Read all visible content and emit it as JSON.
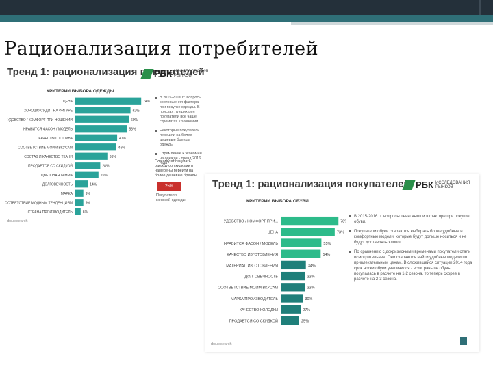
{
  "slide": {
    "title": "Рационализация потребителей"
  },
  "card1": {
    "title": "Тренд 1: рационализация покупателей",
    "brand": "РБК",
    "brand_sub": "ИССЛЕДОВАНИЯ РЫНКОВ",
    "chart_head": "КРИТЕРИИ ВЫБОРА ОДЕЖДЫ",
    "bullets": [
      "В 2015-2016 гг. вопросы соотношения фактора при покупке одежды. В поисках лучших цен покупатели все чаще стремятся к экономии",
      "Некоторые покупатели перешли на более дешевые бренды одежды",
      "Стремление к экономии на одежде - тренд 2016 года"
    ],
    "note": "Планируют покупать одежду со скидками в намерены перейти на более дешевые бренды",
    "badge": "25%",
    "badge_caption": "Покупатели женской одежды",
    "source": "rbc.research"
  },
  "card2": {
    "title": "Тренд 1: рационализация покупателей",
    "brand": "РБК",
    "brand_sub": "ИССЛЕДОВАНИЯ РЫНКОВ",
    "chart_head": "КРИТЕРИИ ВЫБОРА ОБУВИ",
    "bullets": [
      "В 2015-2016 гг. вопросы цены вышли в факторе при покупке обуви.",
      "Покупатели обуви стараются выбирать более удобные и комфортные модели, которые будут дольше носиться и не будут доставлять хлопот",
      "По сравнению с докризисными временами покупатели стали осмотрительнее. Они стараются найти удобные модели по привлекательным ценам. В сложившейся ситуации 2014 года срок носки обуви увеличился - если раньше обувь покупалась в расчете на 1-2 сезона, то теперь скорее в расчете на 2-3 сезона."
    ],
    "source": "rbc.research"
  },
  "chart_data": [
    {
      "type": "bar",
      "title": "КРИТЕРИИ ВЫБОРА ОДЕЖДЫ",
      "categories": [
        "ЦЕНА",
        "ХОРОШО СИДИТ НА ФИГУРЕ",
        "УДОБСТВО / КОМФОРТ ПРИ НОШЕНИИ",
        "НРАВИТСЯ ФАСОН / МОДЕЛЬ",
        "КАЧЕСТВО ПОШИВА",
        "СООТВЕТСТВИЕ МОИМ ВКУСАМ",
        "СОСТАВ И КАЧЕСТВО ТКАНИ",
        "ПРОДАЕТСЯ СО СКИДКОЙ",
        "ЦВЕТОВАЯ ГАММА",
        "ДОЛГОВЕЧНОСТЬ",
        "МАРКА",
        "СООТВЕТСТВИЕ МОДНЫМ ТЕНДЕНЦИЯМ",
        "СТРАНА ПРОИЗВОДИТЕЛЬ"
      ],
      "values": [
        74,
        62,
        60,
        58,
        47,
        46,
        36,
        28,
        26,
        14,
        9,
        9,
        6
      ],
      "labels": [
        "74%",
        "62%",
        "60%",
        "58%",
        "47%",
        "46%",
        "36%",
        "28%",
        "26%",
        "14%",
        "9%",
        "9%",
        "6%"
      ],
      "colors": [
        "#2aa39a",
        "#2aa39a",
        "#2aa39a",
        "#2aa39a",
        "#2aa39a",
        "#2aa39a",
        "#2aa39a",
        "#2aa39a",
        "#2aa39a",
        "#2aa39a",
        "#2aa39a",
        "#2aa39a",
        "#2aa39a"
      ],
      "xlim": [
        0,
        100
      ]
    },
    {
      "type": "bar",
      "title": "КРИТЕРИИ ВЫБОРА ОБУВИ",
      "categories": [
        "УДОБСТВО / КОМФОРТ ПРИ...",
        "ЦЕНА",
        "НРАВИТСЯ ФАСОН / МОДЕЛЬ",
        "КАЧЕСТВО ИЗГОТОВЛЕНИЯ",
        "МАТЕРИАЛ ИЗГОТОВЛЕНИЯ",
        "ДОЛГОВЕЧНОСТЬ",
        "СООТВЕТСТВИЕ МОИМ ВКУСАМ",
        "МАРКА/ПРОИЗВОДИТЕЛЬ",
        "КАЧЕСТВО КОЛОДКИ",
        "ПРОДАЕТСЯ СО СКИДКОЙ"
      ],
      "values": [
        78,
        73,
        55,
        54,
        34,
        33,
        33,
        30,
        27,
        25
      ],
      "labels": [
        "78%",
        "73%",
        "55%",
        "54%",
        "34%",
        "33%",
        "33%",
        "30%",
        "27%",
        "25%"
      ],
      "colors": [
        "#2dbb8a",
        "#2dbb8a",
        "#2dbb8a",
        "#2dbb8a",
        "#1f7f7a",
        "#1f7f7a",
        "#1f7f7a",
        "#1f7f7a",
        "#1f7f7a",
        "#1f7f7a"
      ],
      "xlim": [
        0,
        100
      ]
    }
  ]
}
